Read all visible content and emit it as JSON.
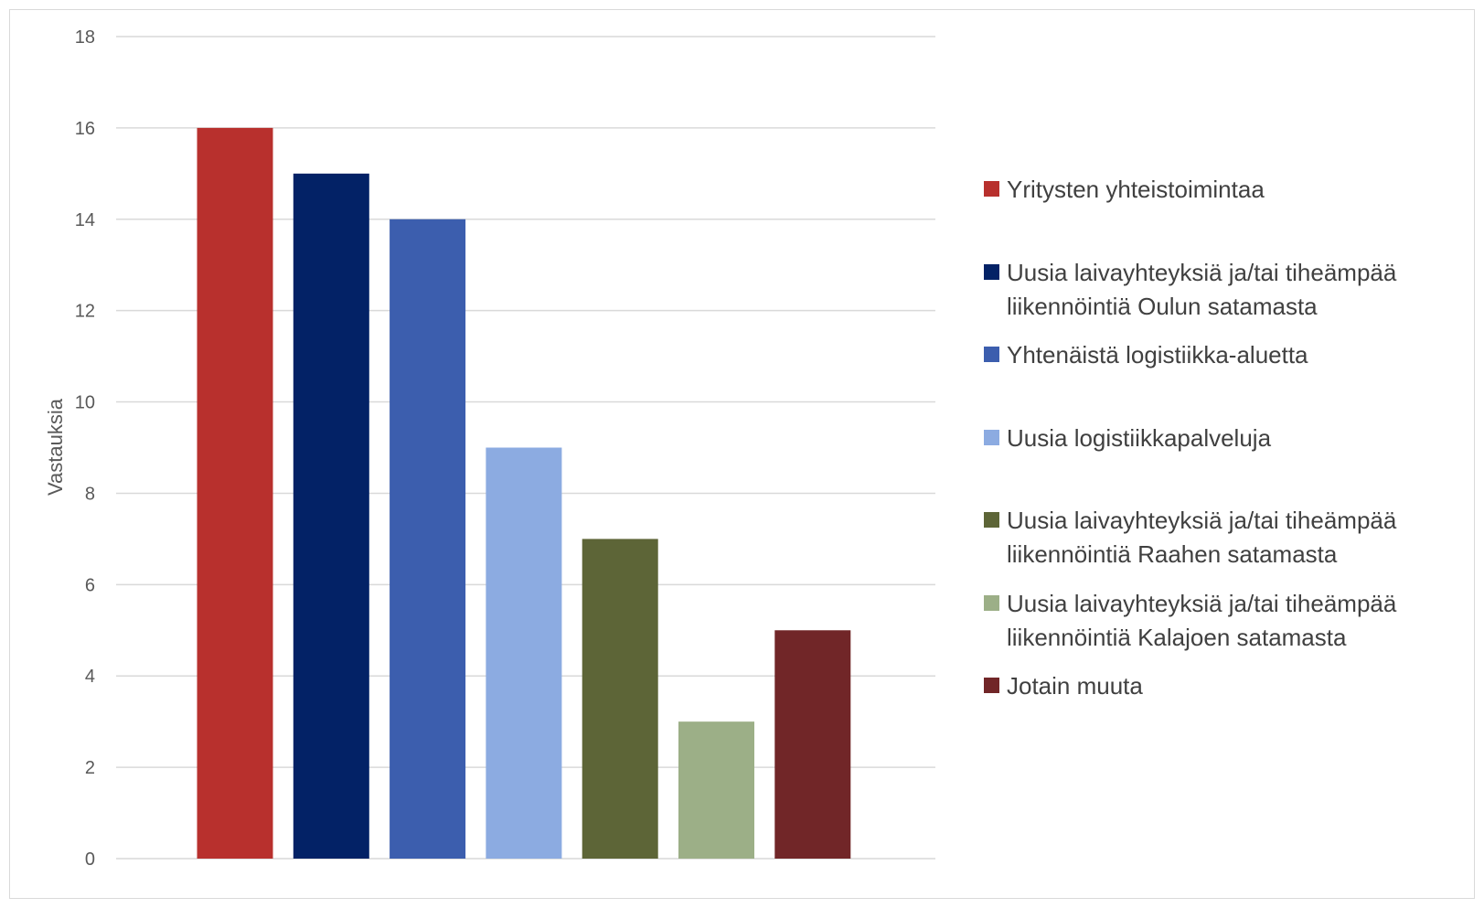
{
  "chart_data": {
    "type": "bar",
    "title": "",
    "xlabel": "",
    "ylabel": "Vastauksia",
    "ylim": [
      0,
      18
    ],
    "yticks": [
      0,
      2,
      4,
      6,
      8,
      10,
      12,
      14,
      16,
      18
    ],
    "grid": true,
    "legend_position": "right",
    "categories": [
      "Yritysten yhteistoimintaa",
      "Uusia laivayhteyksiä ja/tai tiheämpää liikennöintiä Oulun satamasta",
      "Yhtenäistä logistiikka-aluetta",
      "Uusia logistiikkapalveluja",
      "Uusia laivayhteyksiä ja/tai tiheämpää liikennöintiä Raahen satamasta",
      "Uusia laivayhteyksiä ja/tai tiheämpää liikennöintiä Kalajoen satamasta",
      "Jotain muuta"
    ],
    "values": [
      16,
      15,
      14,
      9,
      7,
      3,
      5
    ],
    "colors": [
      "#b8302d",
      "#032266",
      "#3c5eae",
      "#8cabe1",
      "#5d6537",
      "#9caf87",
      "#712628"
    ]
  }
}
